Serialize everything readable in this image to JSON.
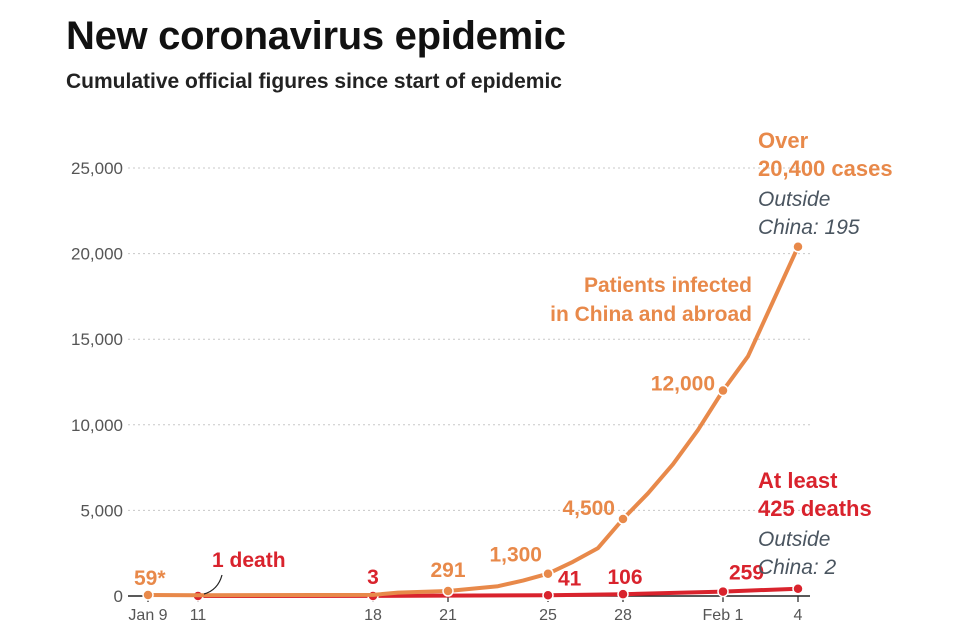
{
  "header": {
    "title": "New coronavirus epidemic",
    "subtitle": "Cumulative official figures since start of epidemic"
  },
  "chart_data": {
    "type": "line",
    "title": "New coronavirus epidemic",
    "subtitle": "Cumulative official figures since start of epidemic",
    "xlabel": "",
    "ylabel": "",
    "ylim": [
      0,
      25000
    ],
    "y_ticks": [
      0,
      5000,
      10000,
      15000,
      20000,
      25000
    ],
    "y_tick_labels": [
      "0",
      "5,000",
      "10,000",
      "15,000",
      "20,000",
      "25,000"
    ],
    "x_ticks": [
      "2020-01-09",
      "2020-01-11",
      "2020-01-18",
      "2020-01-21",
      "2020-01-25",
      "2020-01-28",
      "2020-02-01",
      "2020-02-04"
    ],
    "x_tick_labels": [
      "Jan 9",
      "11",
      "18",
      "21",
      "25",
      "28",
      "Feb 1",
      "4"
    ],
    "grid": "horizontal dotted",
    "colors": {
      "cases": "#e8894a",
      "deaths": "#d9232d",
      "note": "#4a5560"
    },
    "series": [
      {
        "name": "Patients infected in China and abroad",
        "color": "#e8894a",
        "x": [
          "2020-01-09",
          "2020-01-11",
          "2020-01-18",
          "2020-01-19",
          "2020-01-21",
          "2020-01-23",
          "2020-01-24",
          "2020-01-25",
          "2020-01-26",
          "2020-01-27",
          "2020-01-28",
          "2020-01-29",
          "2020-01-30",
          "2020-01-31",
          "2020-02-01",
          "2020-02-02",
          "2020-02-03",
          "2020-02-04"
        ],
        "values": [
          59,
          45,
          62,
          201,
          291,
          570,
          900,
          1300,
          2000,
          2800,
          4500,
          6000,
          7700,
          9700,
          12000,
          14000,
          17200,
          20400
        ],
        "marked": [
          {
            "x": "2020-01-09",
            "label": "59*"
          },
          {
            "x": "2020-01-21",
            "label": "291"
          },
          {
            "x": "2020-01-25",
            "label": "1,300"
          },
          {
            "x": "2020-01-28",
            "label": "4,500"
          },
          {
            "x": "2020-02-01",
            "label": "12,000"
          },
          {
            "x": "2020-02-04",
            "label": ""
          }
        ]
      },
      {
        "name": "",
        "color": "#d9232d",
        "x": [
          "2020-01-11",
          "2020-01-18",
          "2020-01-25",
          "2020-01-28",
          "2020-02-01",
          "2020-02-04"
        ],
        "values": [
          1,
          3,
          41,
          106,
          259,
          425
        ],
        "marked": [
          {
            "x": "2020-01-11",
            "label": ""
          },
          {
            "x": "2020-01-18",
            "label": "3"
          },
          {
            "x": "2020-01-25",
            "label": "41"
          },
          {
            "x": "2020-01-28",
            "label": "106"
          },
          {
            "x": "2020-02-01",
            "label": "259"
          },
          {
            "x": "2020-02-04",
            "label": ""
          }
        ]
      }
    ],
    "annotations": {
      "one_death": "1 death",
      "series_label_line1": "Patients infected",
      "series_label_line2": "in China and abroad",
      "cases_total_line1": "Over",
      "cases_total_line2": "20,400 cases",
      "cases_outside_line1": "Outside",
      "cases_outside_line2": "China: 195",
      "deaths_total_line1": "At least",
      "deaths_total_line2": "425 deaths",
      "deaths_outside_line1": "Outside",
      "deaths_outside_line2": "China: 2"
    }
  }
}
